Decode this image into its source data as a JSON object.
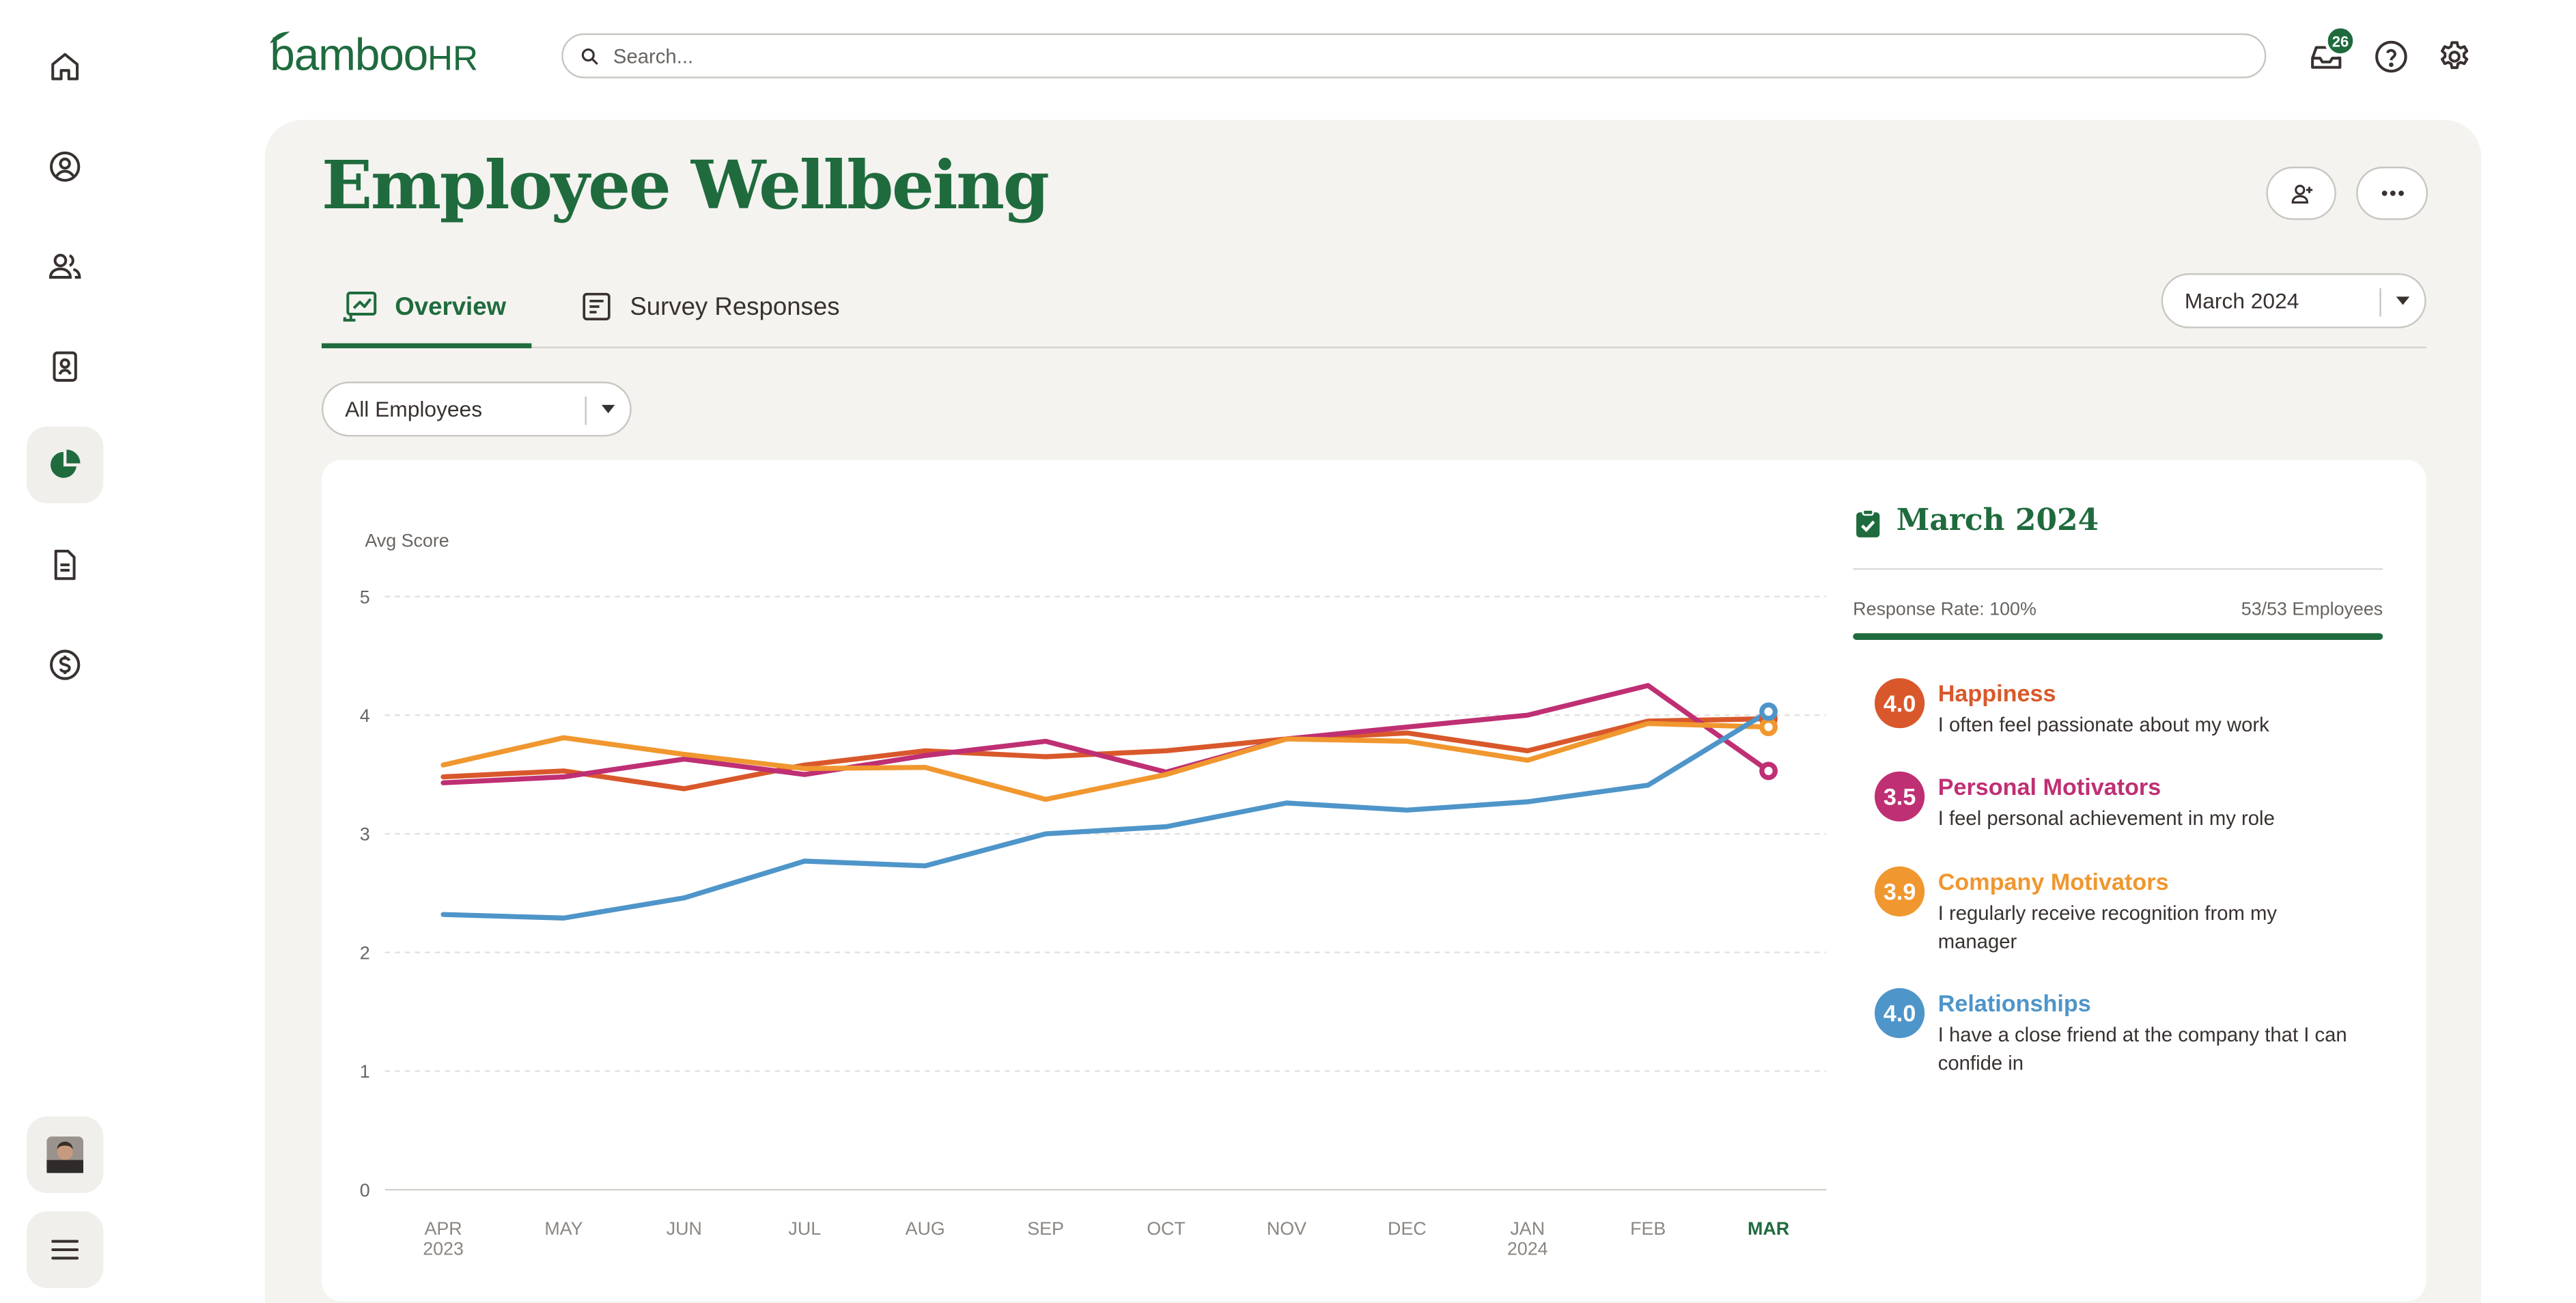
{
  "app": {
    "logo_text": "bambooHR",
    "search_placeholder": "Search...",
    "inbox_count": "26"
  },
  "colors": {
    "brand": "#1f6b3d",
    "happiness": "#d9582b",
    "personal": "#bf2f73",
    "company": "#f0972f",
    "relationships": "#4e95c9"
  },
  "icons": {
    "nav": [
      "home-icon",
      "person-circle-icon",
      "people-icon",
      "id-badge-icon",
      "pie-chart-icon",
      "document-icon",
      "dollar-icon"
    ],
    "top": [
      "inbox-icon",
      "help-icon",
      "gear-icon"
    ]
  },
  "page": {
    "title": "Employee Wellbeing",
    "tabs": [
      {
        "label": "Overview"
      },
      {
        "label": "Survey Responses"
      }
    ],
    "period_select": "March 2024",
    "filter_select": "All Employees"
  },
  "chart_data": {
    "type": "line",
    "title": "",
    "xlabel": "",
    "ylabel": "Avg Score",
    "ylim": [
      0,
      5
    ],
    "yticks": [
      "0",
      "1",
      "2",
      "3",
      "4",
      "5"
    ],
    "categories": [
      [
        "APR",
        "2023"
      ],
      [
        "MAY",
        ""
      ],
      [
        "JUN",
        ""
      ],
      [
        "JUL",
        ""
      ],
      [
        "AUG",
        ""
      ],
      [
        "SEP",
        ""
      ],
      [
        "OCT",
        ""
      ],
      [
        "NOV",
        ""
      ],
      [
        "DEC",
        ""
      ],
      [
        "JAN",
        "2024"
      ],
      [
        "FEB",
        ""
      ],
      [
        "MAR",
        ""
      ]
    ],
    "highlight_index": 11,
    "series": [
      {
        "name": "Happiness",
        "color": "#d9582b",
        "values": [
          3.48,
          3.53,
          3.38,
          3.58,
          3.7,
          3.65,
          3.7,
          3.8,
          3.85,
          3.7,
          3.95,
          3.97
        ]
      },
      {
        "name": "Personal Motivators",
        "color": "#bf2f73",
        "values": [
          3.43,
          3.48,
          3.63,
          3.5,
          3.66,
          3.78,
          3.52,
          3.8,
          3.9,
          4.0,
          4.25,
          3.53
        ]
      },
      {
        "name": "Company Motivators",
        "color": "#f0972f",
        "values": [
          3.58,
          3.81,
          3.67,
          3.55,
          3.56,
          3.29,
          3.5,
          3.8,
          3.78,
          3.62,
          3.93,
          3.9
        ]
      },
      {
        "name": "Relationships",
        "color": "#4e95c9",
        "values": [
          2.32,
          2.29,
          2.46,
          2.77,
          2.73,
          3.0,
          3.06,
          3.26,
          3.2,
          3.27,
          3.41,
          4.03
        ]
      }
    ]
  },
  "summary": {
    "title": "March 2024",
    "response_rate": "Response Rate: 100%",
    "employees": "53/53 Employees",
    "response_fraction": 1.0,
    "metrics": [
      {
        "score": "4.0",
        "name": "Happiness",
        "desc": "I often feel passionate about my work",
        "color": "#d9582b"
      },
      {
        "score": "3.5",
        "name": "Personal Motivators",
        "desc": "I feel personal achievement in my role",
        "color": "#bf2f73"
      },
      {
        "score": "3.9",
        "name": "Company Motivators",
        "desc": "I regularly receive recognition from my manager",
        "color": "#f0972f"
      },
      {
        "score": "4.0",
        "name": "Relationships",
        "desc": "I have a close friend at the company that I can confide in",
        "color": "#4e95c9"
      }
    ]
  }
}
